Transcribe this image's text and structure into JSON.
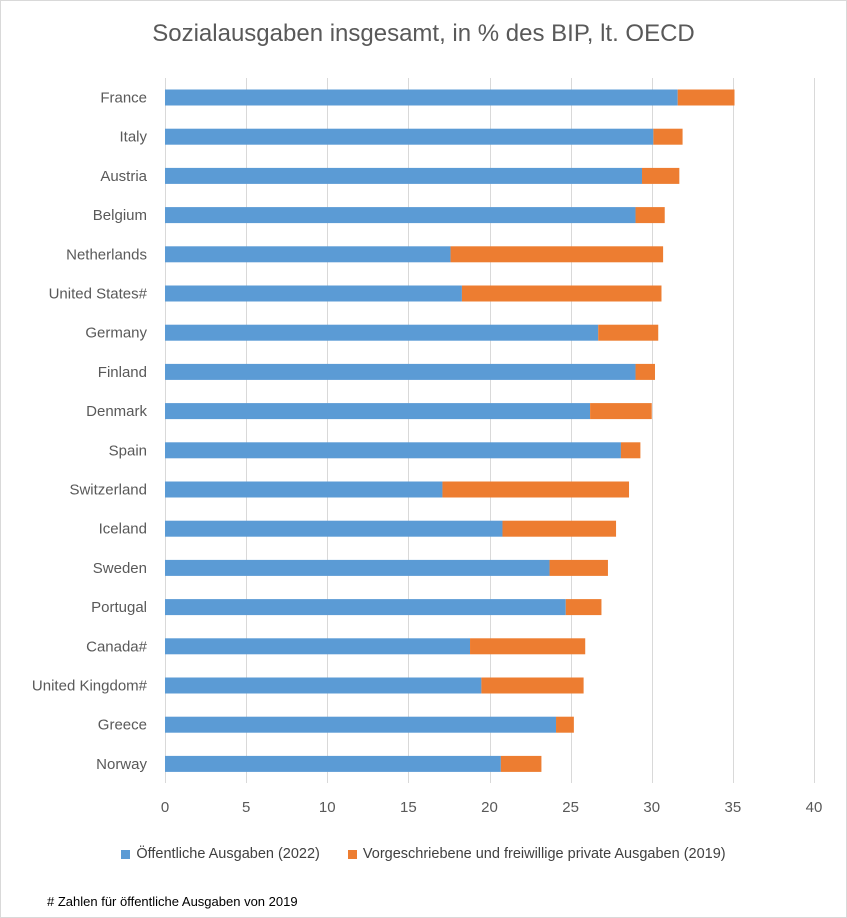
{
  "chart_data": {
    "type": "bar",
    "orientation": "horizontal",
    "stacked": true,
    "title": "Sozialausgaben insgesamt, in % des BIP, lt. OECD",
    "categories": [
      "France",
      "Italy",
      "Austria",
      "Belgium",
      "Netherlands",
      "United States#",
      "Germany",
      "Finland",
      "Denmark",
      "Spain",
      "Switzerland",
      "Iceland",
      "Sweden",
      "Portugal",
      "Canada#",
      "United Kingdom#",
      "Greece",
      "Norway"
    ],
    "series": [
      {
        "name": "Öffentliche Ausgaben (2022)",
        "color": "#5b9bd5",
        "values": [
          31.6,
          30.1,
          29.4,
          29.0,
          17.6,
          18.3,
          26.7,
          29.0,
          26.2,
          28.1,
          17.1,
          20.8,
          23.7,
          24.7,
          18.8,
          19.5,
          24.1,
          20.7
        ]
      },
      {
        "name": "Vorgeschriebene und freiwillige private Ausgaben (2019)",
        "color": "#ed7d31",
        "values": [
          3.5,
          1.8,
          2.3,
          1.8,
          13.1,
          12.3,
          3.7,
          1.2,
          3.8,
          1.2,
          11.5,
          7.0,
          3.6,
          2.2,
          7.1,
          6.3,
          1.1,
          2.5
        ]
      }
    ],
    "xlim": [
      0,
      40
    ],
    "xticks": [
      "0",
      "5",
      "10",
      "15",
      "20",
      "25",
      "30",
      "35",
      "40"
    ],
    "grid": true,
    "legend": "bottom"
  },
  "footnote": "# Zahlen für öffentliche Ausgaben von 2019"
}
